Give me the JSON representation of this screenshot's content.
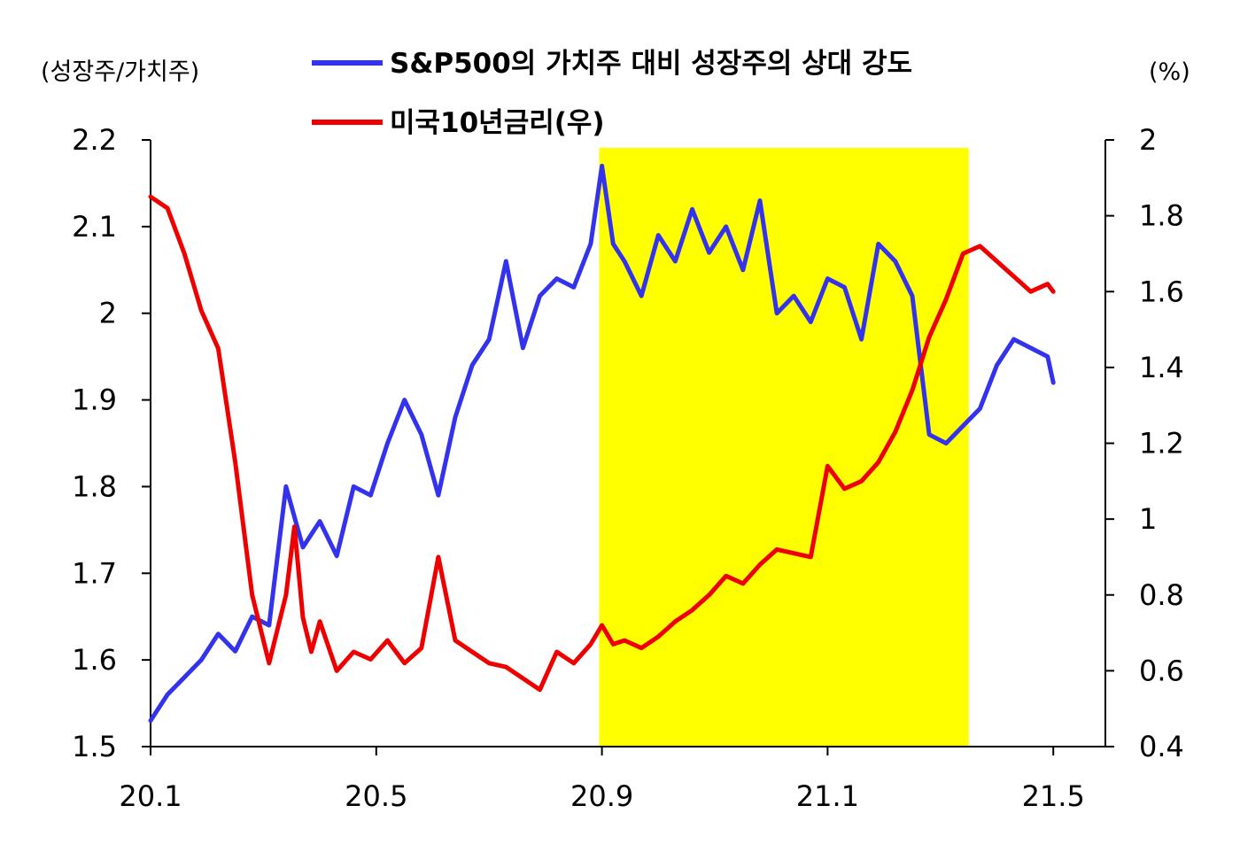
{
  "chart_data": {
    "type": "line",
    "left_axis_label": "(성장주/가치주)",
    "right_axis_label": "(%)",
    "ylim_left": [
      1.5,
      2.2
    ],
    "ylim_right": [
      0.4,
      2.0
    ],
    "y_ticks_left": [
      "2.2",
      "2.1",
      "2",
      "1.9",
      "1.8",
      "1.7",
      "1.6",
      "1.5"
    ],
    "y_ticks_right": [
      "2",
      "1.8",
      "1.6",
      "1.4",
      "1.2",
      "1",
      "0.8",
      "0.6",
      "0.4"
    ],
    "x_ticks": [
      "20.1",
      "20.5",
      "20.9",
      "21.1",
      "21.5"
    ],
    "highlight_period": {
      "from_month": 7.95,
      "to_month": 14.5,
      "color": "#ffff00"
    },
    "series": [
      {
        "name": "S&P500의 가치주 대비 성장주의 상대 강도",
        "axis": "left",
        "color": "#3333ee",
        "x_month": [
          0.0,
          0.3,
          0.6,
          0.9,
          1.2,
          1.5,
          1.8,
          2.1,
          2.4,
          2.7,
          3.0,
          3.3,
          3.6,
          3.9,
          4.2,
          4.5,
          4.8,
          5.1,
          5.4,
          5.7,
          6.0,
          6.3,
          6.6,
          6.9,
          7.2,
          7.5,
          7.8,
          8.0,
          8.2,
          8.4,
          8.7,
          9.0,
          9.3,
          9.6,
          9.9,
          10.2,
          10.5,
          10.8,
          11.1,
          11.4,
          11.7,
          12.0,
          12.3,
          12.6,
          12.9,
          13.2,
          13.5,
          13.8,
          14.1,
          14.4,
          14.7,
          15.0,
          15.3,
          15.6,
          15.9,
          16.0
        ],
        "values": [
          1.53,
          1.56,
          1.58,
          1.6,
          1.63,
          1.61,
          1.65,
          1.64,
          1.8,
          1.73,
          1.76,
          1.72,
          1.8,
          1.79,
          1.85,
          1.9,
          1.86,
          1.79,
          1.88,
          1.94,
          1.97,
          2.06,
          1.96,
          2.02,
          2.04,
          2.03,
          2.08,
          2.17,
          2.08,
          2.06,
          2.02,
          2.09,
          2.06,
          2.12,
          2.07,
          2.1,
          2.05,
          2.13,
          2.0,
          2.02,
          1.99,
          2.04,
          2.03,
          1.97,
          2.08,
          2.06,
          2.02,
          1.86,
          1.85,
          1.87,
          1.89,
          1.94,
          1.97,
          1.96,
          1.95,
          1.92
        ]
      },
      {
        "name": "미국10년금리(우)",
        "axis": "right",
        "color": "#ee0000",
        "x_month": [
          0.0,
          0.3,
          0.6,
          0.9,
          1.2,
          1.5,
          1.8,
          2.1,
          2.4,
          2.55,
          2.7,
          2.85,
          3.0,
          3.3,
          3.6,
          3.9,
          4.2,
          4.5,
          4.8,
          5.1,
          5.4,
          5.7,
          6.0,
          6.3,
          6.6,
          6.9,
          7.2,
          7.5,
          7.8,
          8.0,
          8.2,
          8.4,
          8.7,
          9.0,
          9.3,
          9.6,
          9.9,
          10.2,
          10.5,
          10.8,
          11.1,
          11.4,
          11.7,
          12.0,
          12.3,
          12.6,
          12.9,
          13.2,
          13.5,
          13.8,
          14.1,
          14.4,
          14.7,
          15.0,
          15.3,
          15.6,
          15.9,
          16.0
        ],
        "values": [
          1.85,
          1.82,
          1.7,
          1.55,
          1.45,
          1.15,
          0.8,
          0.62,
          0.8,
          0.98,
          0.74,
          0.65,
          0.73,
          0.6,
          0.65,
          0.63,
          0.68,
          0.62,
          0.66,
          0.9,
          0.68,
          0.65,
          0.62,
          0.61,
          0.58,
          0.55,
          0.65,
          0.62,
          0.67,
          0.72,
          0.67,
          0.68,
          0.66,
          0.69,
          0.73,
          0.76,
          0.8,
          0.85,
          0.83,
          0.88,
          0.92,
          0.91,
          0.9,
          1.14,
          1.08,
          1.1,
          1.15,
          1.23,
          1.34,
          1.48,
          1.58,
          1.7,
          1.72,
          1.68,
          1.64,
          1.6,
          1.62,
          1.6
        ]
      }
    ]
  }
}
